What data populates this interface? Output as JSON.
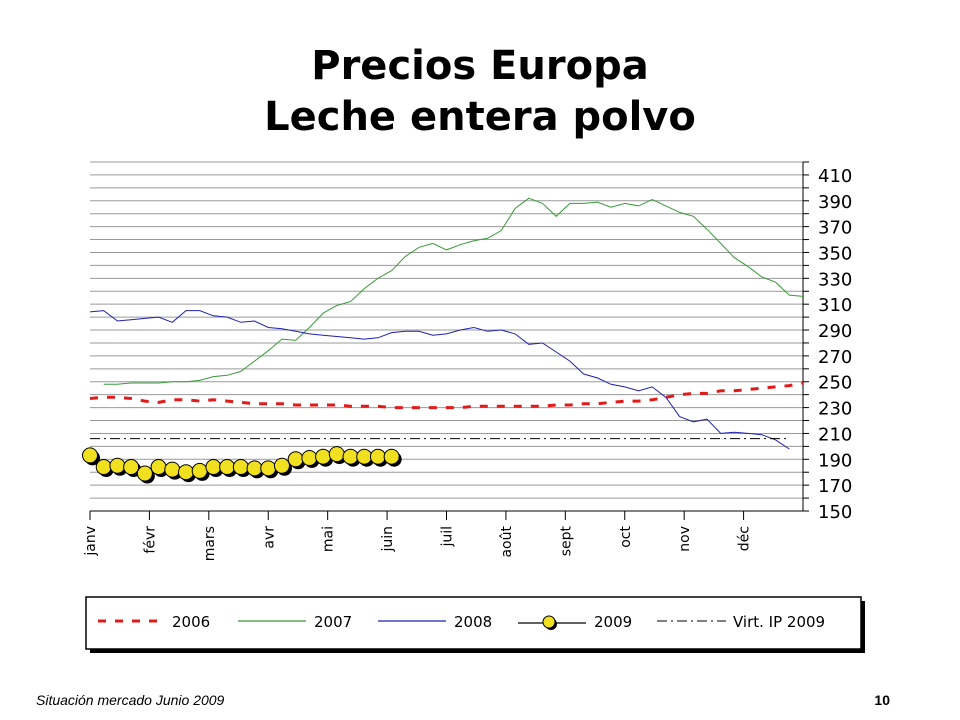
{
  "slide": {
    "title_line1": "Precios Europa",
    "title_line2": "Leche entera polvo",
    "footer_left": "Situación mercado Junio 2009",
    "page_number": "10"
  },
  "chart_data": {
    "type": "line",
    "title": "Precios Europa Leche entera polvo",
    "y_axis": {
      "position": "right",
      "ylim": [
        150,
        420
      ],
      "ticks": [
        150,
        170,
        190,
        210,
        230,
        250,
        270,
        290,
        310,
        330,
        350,
        370,
        390,
        410
      ]
    },
    "x_axis": {
      "xlim": [
        0,
        52
      ],
      "month_labels": [
        "janv",
        "févr",
        "mars",
        "avr",
        "mai",
        "juin",
        "juil",
        "août",
        "sept",
        "oct",
        "nov",
        "déc"
      ]
    },
    "grid": "horizontal",
    "legend_position": "bottom",
    "series": [
      {
        "name": "2006",
        "color": "#e21a1a",
        "style": "dashed-red",
        "x": [
          0,
          1,
          2,
          3,
          4,
          5,
          6,
          7,
          8,
          9,
          10,
          11,
          12,
          13,
          14,
          15,
          16,
          17,
          18,
          19,
          20,
          21,
          22,
          23,
          24,
          25,
          26,
          27,
          28,
          29,
          30,
          31,
          32,
          33,
          34,
          35,
          36,
          37,
          38,
          39,
          40,
          41,
          42,
          43,
          44,
          45,
          46,
          47,
          48,
          49,
          50,
          51,
          52
        ],
        "y": [
          237,
          238,
          238,
          237,
          235,
          234,
          236,
          236,
          235,
          236,
          235,
          234,
          233,
          233,
          233,
          232,
          232,
          232,
          232,
          231,
          231,
          231,
          230,
          230,
          230,
          230,
          230,
          230,
          231,
          231,
          231,
          231,
          231,
          231,
          232,
          232,
          233,
          233,
          234,
          235,
          235,
          236,
          238,
          240,
          241,
          241,
          243,
          243,
          244,
          245,
          246,
          247,
          249
        ]
      },
      {
        "name": "2007",
        "color": "#3a9a3a",
        "style": "solid",
        "x": [
          1,
          2,
          3,
          4,
          5,
          6,
          7,
          8,
          9,
          10,
          11,
          12,
          13,
          14,
          15,
          16,
          17,
          18,
          19,
          20,
          21,
          22,
          23,
          24,
          25,
          26,
          27,
          28,
          29,
          30,
          31,
          32,
          33,
          34,
          35,
          36,
          37,
          38,
          39,
          40,
          41,
          42,
          43,
          44,
          45,
          46,
          47,
          48,
          49,
          50,
          51,
          52
        ],
        "y": [
          248,
          248,
          249,
          249,
          249,
          250,
          250,
          251,
          254,
          255,
          258,
          266,
          274,
          283,
          282,
          292,
          303,
          309,
          312,
          322,
          330,
          336,
          347,
          354,
          357,
          352,
          356,
          359,
          361,
          367,
          384,
          392,
          388,
          378,
          388,
          388,
          389,
          385,
          388,
          386,
          391,
          386,
          381,
          378,
          368,
          357,
          346,
          339,
          331,
          327,
          317,
          316
        ]
      },
      {
        "name": "2008",
        "color": "#2020b0",
        "style": "solid",
        "x": [
          0,
          1,
          2,
          3,
          4,
          5,
          6,
          7,
          8,
          9,
          10,
          11,
          12,
          13,
          14,
          15,
          16,
          17,
          18,
          19,
          20,
          21,
          22,
          23,
          24,
          25,
          26,
          27,
          28,
          29,
          30,
          31,
          32,
          33,
          34,
          35,
          36,
          37,
          38,
          39,
          40,
          41,
          42,
          43,
          44,
          45,
          46,
          47,
          48,
          49,
          50,
          51
        ],
        "y": [
          304,
          305,
          297,
          298,
          299,
          300,
          296,
          305,
          305,
          301,
          300,
          296,
          297,
          292,
          291,
          289,
          287,
          286,
          285,
          284,
          283,
          284,
          288,
          289,
          289,
          286,
          287,
          290,
          292,
          289,
          290,
          287,
          279,
          280,
          273,
          266,
          256,
          253,
          248,
          246,
          243,
          246,
          238,
          223,
          219,
          221,
          210,
          211,
          210,
          209,
          205,
          198
        ]
      },
      {
        "name": "2009",
        "color": "#f0e020",
        "style": "markers",
        "x": [
          0,
          1,
          2,
          3,
          4,
          5,
          6,
          7,
          8,
          9,
          10,
          11,
          12,
          13,
          14,
          15,
          16,
          17,
          18,
          19,
          20,
          21,
          22
        ],
        "y": [
          193,
          184,
          185,
          184,
          179,
          184,
          182,
          180,
          181,
          184,
          184,
          184,
          183,
          183,
          185,
          190,
          191,
          192,
          194,
          192,
          192,
          192,
          192
        ]
      },
      {
        "name": "Virt. IP 2009",
        "color": "#000000",
        "style": "dash-dot",
        "x": [
          0,
          51
        ],
        "y": [
          206,
          206
        ]
      }
    ]
  }
}
